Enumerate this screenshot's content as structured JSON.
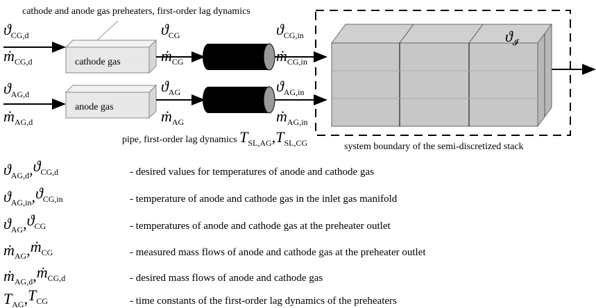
{
  "diagram": {
    "top_caption": "cathode and anode gas preheaters, first-order lag dynamics",
    "boxes": [
      "cathode gas",
      "anode gas"
    ],
    "signals": [
      {
        "base": "ϑ",
        "sub": "CG,d"
      },
      {
        "base": "ṁ",
        "sub": "CG,d"
      },
      {
        "base": "ϑ",
        "sub": "CG"
      },
      {
        "base": "ṁ",
        "sub": "CG"
      },
      {
        "base": "ϑ",
        "sub": "CG,in"
      },
      {
        "base": "ṁ",
        "sub": "CG,in"
      },
      {
        "base": "ϑ",
        "sub": "AG,d"
      },
      {
        "base": "ṁ",
        "sub": "AG,d"
      },
      {
        "base": "ϑ",
        "sub": "AG"
      },
      {
        "base": "ṁ",
        "sub": "AG"
      },
      {
        "base": "ϑ",
        "sub": "AG,in"
      },
      {
        "base": "ṁ",
        "sub": "AG,in"
      }
    ],
    "stack_symbol": {
      "base": "ϑ",
      "sub": "𝓘"
    },
    "pipe_caption": "pipe, first-order lag dynamics",
    "pipe_symbols": [
      {
        "base": "T",
        "sub": "SL,AG"
      },
      {
        "base": "T",
        "sub": "SL,CG"
      }
    ],
    "separator": ",",
    "boundary_caption": "system boundary of the semi-discretized stack"
  },
  "legend": [
    {
      "symbols": [
        {
          "base": "ϑ",
          "sub": "AG,d"
        },
        {
          "base": "ϑ",
          "sub": "CG,d"
        }
      ],
      "description": "- desired values for temperatures of anode and cathode gas"
    },
    {
      "symbols": [
        {
          "base": "ϑ",
          "sub": "AG,in"
        },
        {
          "base": "ϑ",
          "sub": "CG,in"
        }
      ],
      "description": "- temperature of anode and cathode gas in the inlet gas manifold"
    },
    {
      "symbols": [
        {
          "base": "ϑ",
          "sub": "AG"
        },
        {
          "base": "ϑ",
          "sub": "CG"
        }
      ],
      "description": "- temperatures of anode and cathode gas at the preheater outlet"
    },
    {
      "symbols": [
        {
          "base": "ṁ",
          "sub": "AG"
        },
        {
          "base": "ṁ",
          "sub": "CG"
        }
      ],
      "description": "- measured mass flows of anode and cathode gas at the preheater outlet"
    },
    {
      "symbols": [
        {
          "base": "ṁ",
          "sub": "AG,d"
        },
        {
          "base": "ṁ",
          "sub": "CG,d"
        }
      ],
      "description": "- desired mass flows of anode and cathode gas"
    },
    {
      "symbols": [
        {
          "base": "T",
          "sub": "AG"
        },
        {
          "base": "T",
          "sub": "CG"
        }
      ],
      "description": "- time constants of the first-order lag dynamics of the preheaters"
    }
  ]
}
